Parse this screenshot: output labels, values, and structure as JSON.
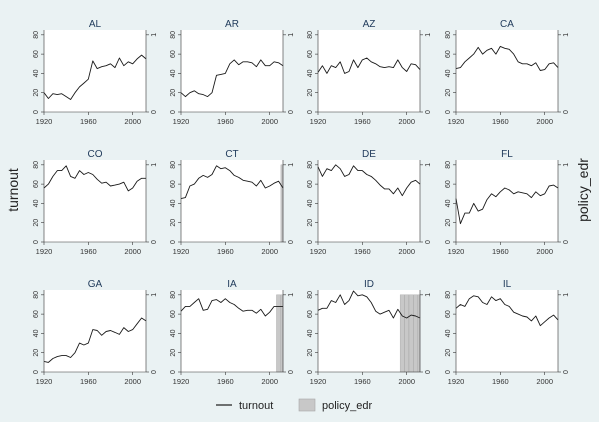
{
  "figure": {
    "ylabel_left": "turnout",
    "ylabel_right": "policy_edr",
    "legend": {
      "line_label": "turnout",
      "bar_label": "policy_edr"
    },
    "colors": {
      "background": "#eaf2f3",
      "panel": "#ffffff",
      "line": "#1a1a1a",
      "bar": "#c8c8c8",
      "bar_edge": "#a6a6a6",
      "axis": "#333333"
    },
    "left_ticks": [
      "0",
      "20",
      "40",
      "60",
      "80"
    ],
    "right_ticks": [
      "0",
      "1"
    ],
    "x_ticks": [
      "1920",
      "1960",
      "2000"
    ]
  },
  "chart_data": [
    {
      "type": "line",
      "title": "AL",
      "xlim": [
        1920,
        2012
      ],
      "ylim": [
        0,
        85
      ],
      "xticks": [
        1920,
        1960,
        2000
      ],
      "yticks": [
        0,
        20,
        40,
        60,
        80
      ],
      "y2ticks": [
        0,
        1
      ],
      "x": [
        1920,
        1924,
        1928,
        1932,
        1936,
        1940,
        1944,
        1948,
        1952,
        1956,
        1960,
        1964,
        1968,
        1972,
        1976,
        1980,
        1984,
        1988,
        1992,
        1996,
        2000,
        2004,
        2008,
        2012
      ],
      "series": [
        {
          "name": "turnout",
          "values": [
            20,
            14,
            19,
            18,
            19,
            16,
            13,
            20,
            26,
            30,
            34,
            53,
            45,
            47,
            48,
            50,
            46,
            56,
            48,
            52,
            50,
            55,
            59,
            55
          ]
        }
      ]
    },
    {
      "type": "line",
      "title": "AR",
      "xlim": [
        1920,
        2012
      ],
      "ylim": [
        0,
        85
      ],
      "xticks": [
        1920,
        1960,
        2000
      ],
      "yticks": [
        0,
        20,
        40,
        60,
        80
      ],
      "y2ticks": [
        0,
        1
      ],
      "x": [
        1920,
        1924,
        1928,
        1932,
        1936,
        1940,
        1944,
        1948,
        1952,
        1956,
        1960,
        1964,
        1968,
        1972,
        1976,
        1980,
        1984,
        1988,
        1992,
        1996,
        2000,
        2004,
        2008,
        2012
      ],
      "series": [
        {
          "name": "turnout",
          "values": [
            20,
            16,
            20,
            22,
            19,
            18,
            16,
            20,
            38,
            39,
            40,
            50,
            54,
            49,
            52,
            52,
            51,
            47,
            54,
            48,
            48,
            52,
            51,
            48
          ]
        }
      ]
    },
    {
      "type": "line",
      "title": "AZ",
      "xlim": [
        1920,
        2012
      ],
      "ylim": [
        0,
        85
      ],
      "xticks": [
        1920,
        1960,
        2000
      ],
      "yticks": [
        0,
        20,
        40,
        60,
        80
      ],
      "y2ticks": [
        0,
        1
      ],
      "x": [
        1920,
        1924,
        1928,
        1932,
        1936,
        1940,
        1944,
        1948,
        1952,
        1956,
        1960,
        1964,
        1968,
        1972,
        1976,
        1980,
        1984,
        1988,
        1992,
        1996,
        2000,
        2004,
        2008,
        2012
      ],
      "series": [
        {
          "name": "turnout",
          "values": [
            41,
            48,
            40,
            48,
            46,
            52,
            40,
            42,
            54,
            46,
            54,
            56,
            52,
            50,
            47,
            46,
            47,
            46,
            54,
            46,
            42,
            50,
            49,
            44
          ]
        }
      ]
    },
    {
      "type": "line",
      "title": "CA",
      "xlim": [
        1920,
        2012
      ],
      "ylim": [
        0,
        85
      ],
      "xticks": [
        1920,
        1960,
        2000
      ],
      "yticks": [
        0,
        20,
        40,
        60,
        80
      ],
      "y2ticks": [
        0,
        1
      ],
      "x": [
        1920,
        1924,
        1928,
        1932,
        1936,
        1940,
        1944,
        1948,
        1952,
        1956,
        1960,
        1964,
        1968,
        1972,
        1976,
        1980,
        1984,
        1988,
        1992,
        1996,
        2000,
        2004,
        2008,
        2012
      ],
      "series": [
        {
          "name": "turnout",
          "values": [
            45,
            46,
            52,
            56,
            60,
            67,
            60,
            64,
            66,
            60,
            68,
            66,
            65,
            60,
            52,
            50,
            50,
            48,
            51,
            43,
            44,
            50,
            51,
            46
          ]
        }
      ]
    },
    {
      "type": "line",
      "title": "CO",
      "xlim": [
        1920,
        2012
      ],
      "ylim": [
        0,
        85
      ],
      "xticks": [
        1920,
        1960,
        2000
      ],
      "yticks": [
        0,
        20,
        40,
        60,
        80
      ],
      "y2ticks": [
        0,
        1
      ],
      "x": [
        1920,
        1924,
        1928,
        1932,
        1936,
        1940,
        1944,
        1948,
        1952,
        1956,
        1960,
        1964,
        1968,
        1972,
        1976,
        1980,
        1984,
        1988,
        1992,
        1996,
        2000,
        2004,
        2008,
        2012
      ],
      "series": [
        {
          "name": "turnout",
          "values": [
            56,
            60,
            68,
            74,
            74,
            79,
            68,
            66,
            74,
            70,
            72,
            70,
            65,
            61,
            62,
            58,
            59,
            60,
            62,
            53,
            56,
            63,
            66,
            66
          ]
        }
      ]
    },
    {
      "type": "line",
      "title": "CT",
      "xlim": [
        1920,
        2012
      ],
      "ylim": [
        0,
        85
      ],
      "xticks": [
        1920,
        1960,
        2000
      ],
      "yticks": [
        0,
        20,
        40,
        60,
        80
      ],
      "y2ticks": [
        0,
        1
      ],
      "x": [
        1920,
        1924,
        1928,
        1932,
        1936,
        1940,
        1944,
        1948,
        1952,
        1956,
        1960,
        1964,
        1968,
        1972,
        1976,
        1980,
        1984,
        1988,
        1992,
        1996,
        2000,
        2004,
        2008,
        2012
      ],
      "series": [
        {
          "name": "turnout",
          "values": [
            45,
            46,
            58,
            60,
            66,
            69,
            67,
            70,
            79,
            76,
            77,
            74,
            69,
            67,
            64,
            63,
            62,
            58,
            64,
            56,
            58,
            61,
            63,
            56
          ]
        }
      ],
      "bars": {
        "name": "policy_edr",
        "x": [
          2012
        ],
        "values": [
          1
        ]
      }
    },
    {
      "type": "line",
      "title": "DE",
      "xlim": [
        1920,
        2012
      ],
      "ylim": [
        0,
        85
      ],
      "xticks": [
        1920,
        1960,
        2000
      ],
      "yticks": [
        0,
        20,
        40,
        60,
        80
      ],
      "y2ticks": [
        0,
        1
      ],
      "x": [
        1920,
        1924,
        1928,
        1932,
        1936,
        1940,
        1944,
        1948,
        1952,
        1956,
        1960,
        1964,
        1968,
        1972,
        1976,
        1980,
        1984,
        1988,
        1992,
        1996,
        2000,
        2004,
        2008,
        2012
      ],
      "series": [
        {
          "name": "turnout",
          "values": [
            78,
            68,
            76,
            74,
            80,
            76,
            68,
            70,
            79,
            74,
            74,
            70,
            68,
            64,
            59,
            55,
            55,
            50,
            56,
            48,
            56,
            62,
            64,
            60
          ]
        }
      ]
    },
    {
      "type": "line",
      "title": "FL",
      "xlim": [
        1920,
        2012
      ],
      "ylim": [
        0,
        85
      ],
      "xticks": [
        1920,
        1960,
        2000
      ],
      "yticks": [
        0,
        20,
        40,
        60,
        80
      ],
      "y2ticks": [
        0,
        1
      ],
      "x": [
        1920,
        1924,
        1928,
        1932,
        1936,
        1940,
        1944,
        1948,
        1952,
        1956,
        1960,
        1964,
        1968,
        1972,
        1976,
        1980,
        1984,
        1988,
        1992,
        1996,
        2000,
        2004,
        2008,
        2012
      ],
      "series": [
        {
          "name": "turnout",
          "values": [
            45,
            19,
            30,
            30,
            40,
            32,
            34,
            44,
            50,
            47,
            52,
            56,
            54,
            50,
            52,
            51,
            50,
            46,
            52,
            48,
            50,
            58,
            59,
            56
          ]
        }
      ]
    },
    {
      "type": "line",
      "title": "GA",
      "xlim": [
        1920,
        2012
      ],
      "ylim": [
        0,
        85
      ],
      "xticks": [
        1920,
        1960,
        2000
      ],
      "yticks": [
        0,
        20,
        40,
        60,
        80
      ],
      "y2ticks": [
        0,
        1
      ],
      "x": [
        1920,
        1924,
        1928,
        1932,
        1936,
        1940,
        1944,
        1948,
        1952,
        1956,
        1960,
        1964,
        1968,
        1972,
        1976,
        1980,
        1984,
        1988,
        1992,
        1996,
        2000,
        2004,
        2008,
        2012
      ],
      "series": [
        {
          "name": "turnout",
          "values": [
            11,
            10,
            14,
            16,
            17,
            17,
            15,
            20,
            30,
            28,
            30,
            44,
            43,
            38,
            42,
            43,
            41,
            39,
            46,
            42,
            44,
            50,
            56,
            53
          ]
        }
      ]
    },
    {
      "type": "line",
      "title": "IA",
      "xlim": [
        1920,
        2012
      ],
      "ylim": [
        0,
        85
      ],
      "xticks": [
        1920,
        1960,
        2000
      ],
      "yticks": [
        0,
        20,
        40,
        60,
        80
      ],
      "y2ticks": [
        0,
        1
      ],
      "x": [
        1920,
        1924,
        1928,
        1932,
        1936,
        1940,
        1944,
        1948,
        1952,
        1956,
        1960,
        1964,
        1968,
        1972,
        1976,
        1980,
        1984,
        1988,
        1992,
        1996,
        2000,
        2004,
        2008,
        2012
      ],
      "series": [
        {
          "name": "turnout",
          "values": [
            63,
            68,
            68,
            72,
            76,
            64,
            65,
            74,
            75,
            72,
            76,
            72,
            70,
            66,
            63,
            64,
            64,
            61,
            65,
            58,
            62,
            68,
            68,
            68
          ]
        }
      ],
      "bars": {
        "name": "policy_edr",
        "x": [
          2008,
          2012
        ],
        "values": [
          1,
          1
        ]
      }
    },
    {
      "type": "line",
      "title": "ID",
      "xlim": [
        1920,
        2012
      ],
      "ylim": [
        0,
        85
      ],
      "xticks": [
        1920,
        1960,
        2000
      ],
      "yticks": [
        0,
        20,
        40,
        60,
        80
      ],
      "y2ticks": [
        0,
        1
      ],
      "x": [
        1920,
        1924,
        1928,
        1932,
        1936,
        1940,
        1944,
        1948,
        1952,
        1956,
        1960,
        1964,
        1968,
        1972,
        1976,
        1980,
        1984,
        1988,
        1992,
        1996,
        2000,
        2004,
        2008,
        2012
      ],
      "series": [
        {
          "name": "turnout",
          "values": [
            64,
            66,
            66,
            74,
            72,
            80,
            70,
            74,
            84,
            79,
            80,
            78,
            72,
            63,
            60,
            62,
            64,
            56,
            65,
            58,
            56,
            59,
            58,
            56
          ]
        }
      ],
      "bars": {
        "name": "policy_edr",
        "x": [
          1996,
          2000,
          2004,
          2008,
          2012
        ],
        "values": [
          1,
          1,
          1,
          1,
          1
        ]
      }
    },
    {
      "type": "line",
      "title": "IL",
      "xlim": [
        1920,
        2012
      ],
      "ylim": [
        0,
        85
      ],
      "xticks": [
        1920,
        1960,
        2000
      ],
      "yticks": [
        0,
        20,
        40,
        60,
        80
      ],
      "y2ticks": [
        0,
        1
      ],
      "x": [
        1920,
        1924,
        1928,
        1932,
        1936,
        1940,
        1944,
        1948,
        1952,
        1956,
        1960,
        1964,
        1968,
        1972,
        1976,
        1980,
        1984,
        1988,
        1992,
        1996,
        2000,
        2004,
        2008,
        2012
      ],
      "series": [
        {
          "name": "turnout",
          "values": [
            66,
            70,
            68,
            76,
            79,
            78,
            72,
            70,
            78,
            74,
            76,
            70,
            68,
            62,
            60,
            58,
            57,
            53,
            58,
            48,
            52,
            56,
            59,
            54
          ]
        }
      ]
    }
  ]
}
